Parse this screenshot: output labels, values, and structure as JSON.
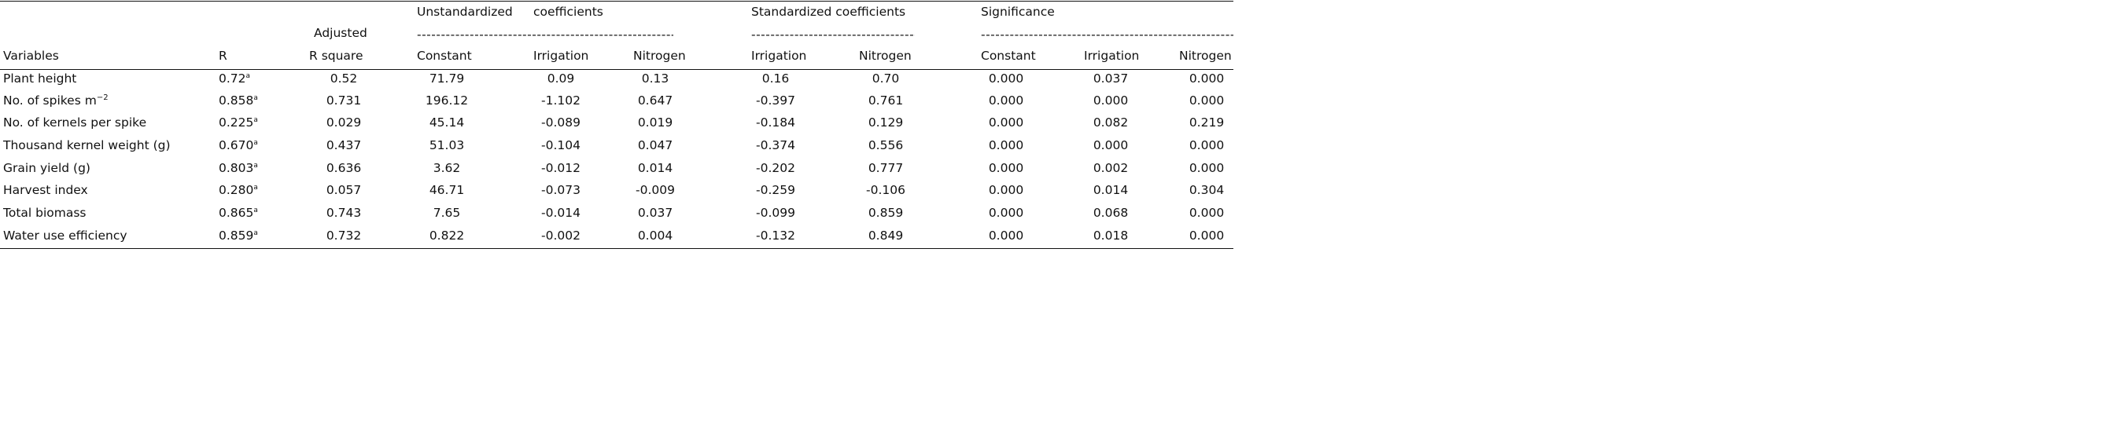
{
  "header": {
    "group_unstd_left": "Unstandardized",
    "group_unstd_right": "coefficients",
    "group_std": "Standardized coefficients",
    "group_sig": "Significance",
    "adjusted_line1": "Adjusted",
    "adjusted_line2": "R square",
    "col_variables": "Variables",
    "col_r": "R",
    "col_constant": "Constant",
    "col_irrigation": "Irrigation",
    "col_nitrogen": "Nitrogen",
    "col_std_irrigation": "Irrigation",
    "col_std_nitrogen": "Nitrogen",
    "col_sig_constant": "Constant",
    "col_sig_irrigation": "Irrigation",
    "col_sig_nitrogen": "Nitrogen",
    "dashes_unstd": "------------------------------------------------------------------",
    "dashes_std": "------------------------------------------------",
    "dashes_sig": "---------------------------------------------------------------------------------------"
  },
  "rows": [
    {
      "variable": "Plant height",
      "r": "0.72",
      "r_sup": "a",
      "adj": "0.52",
      "constant": "71.79",
      "irr": "0.09",
      "nit": "0.13",
      "s_irr": "0.16",
      "s_nit": "0.70",
      "p_const": "0.000",
      "p_irr": "0.037",
      "p_nit": "0.000"
    },
    {
      "variable": "No. of spikes m",
      "variable_sup": "−2",
      "r": "0.858",
      "r_sup": "a",
      "adj": "0.731",
      "constant": "196.12",
      "irr": "-1.102",
      "nit": "0.647",
      "s_irr": "-0.397",
      "s_nit": "0.761",
      "p_const": "0.000",
      "p_irr": "0.000",
      "p_nit": "0.000"
    },
    {
      "variable": "No. of kernels per spike",
      "r": "0.225",
      "r_sup": "a",
      "adj": "0.029",
      "constant": "45.14",
      "irr": "-0.089",
      "nit": "0.019",
      "s_irr": "-0.184",
      "s_nit": "0.129",
      "p_const": "0.000",
      "p_irr": "0.082",
      "p_nit": "0.219"
    },
    {
      "variable": "Thousand kernel weight (g)",
      "r": "0.670",
      "r_sup": "a",
      "adj": "0.437",
      "constant": "51.03",
      "irr": "-0.104",
      "nit": "0.047",
      "s_irr": "-0.374",
      "s_nit": "0.556",
      "p_const": "0.000",
      "p_irr": "0.000",
      "p_nit": "0.000"
    },
    {
      "variable": "Grain yield (g)",
      "r": "0.803",
      "r_sup": "a",
      "adj": "0.636",
      "constant": "3.62",
      "irr": "-0.012",
      "nit": "0.014",
      "s_irr": "-0.202",
      "s_nit": "0.777",
      "p_const": "0.000",
      "p_irr": "0.002",
      "p_nit": "0.000"
    },
    {
      "variable": "Harvest index",
      "r": "0.280",
      "r_sup": "a",
      "adj": "0.057",
      "constant": "46.71",
      "irr": "-0.073",
      "nit": "-0.009",
      "s_irr": "-0.259",
      "s_nit": "-0.106",
      "p_const": "0.000",
      "p_irr": "0.014",
      "p_nit": "0.304"
    },
    {
      "variable": "Total biomass",
      "r": "0.865",
      "r_sup": "a",
      "adj": "0.743",
      "constant": "7.65",
      "irr": "-0.014",
      "nit": "0.037",
      "s_irr": "-0.099",
      "s_nit": "0.859",
      "p_const": "0.000",
      "p_irr": "0.068",
      "p_nit": "0.000"
    },
    {
      "variable": "Water use efficiency",
      "r": "0.859",
      "r_sup": "a",
      "adj": "0.732",
      "constant": "0.822",
      "irr": "-0.002",
      "nit": "0.004",
      "s_irr": "-0.132",
      "s_nit": "0.849",
      "p_const": "0.000",
      "p_irr": "0.018",
      "p_nit": "0.000"
    }
  ]
}
